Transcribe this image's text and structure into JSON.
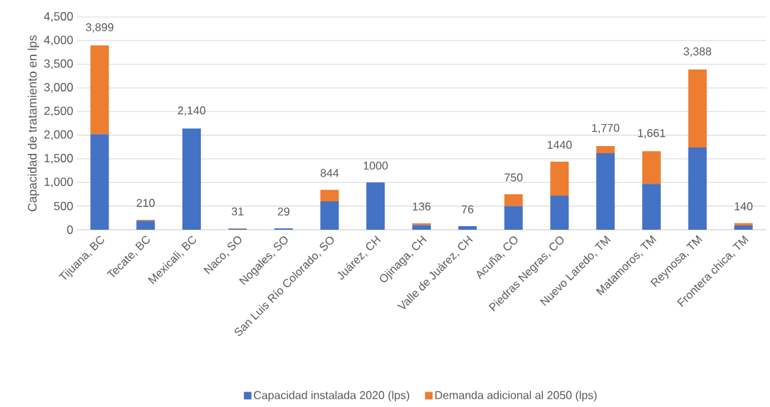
{
  "chart_data": {
    "type": "bar",
    "stacked": true,
    "ylabel": "Capacidad de tratamiento en lps",
    "categories": [
      "Tijuana, BC",
      "Tecate, BC",
      "Mexicali, BC",
      "Naco, SO",
      "Nogales, SO",
      "San Luis Río Colorado, SO",
      "Juárez, CH",
      "Ojinaga, CH",
      "Valle de Juárez, CH",
      "Acuña, CO",
      "Piedras Negras, CO",
      "Nuevo Laredo, TM",
      "Matamoros, TM",
      "Reynosa, TM",
      "Frontera chica, TM"
    ],
    "series": [
      {
        "name": "Capacidad instalada 2020 (lps)",
        "color": "#4472c4",
        "values": [
          2020,
          190,
          2140,
          20,
          29,
          600,
          1000,
          100,
          76,
          500,
          720,
          1620,
          970,
          1740,
          90
        ]
      },
      {
        "name": "Demanda adicional al 2050 (lps)",
        "color": "#ed7d31",
        "values": [
          1879,
          20,
          0,
          11,
          0,
          244,
          0,
          36,
          0,
          250,
          720,
          150,
          691,
          1648,
          50
        ]
      }
    ],
    "totals": [
      "3,899",
      "210",
      "2,140",
      "31",
      "29",
      "844",
      "1000",
      "136",
      "76",
      "750",
      "1440",
      "1,770",
      "1,661",
      "3,388",
      "140"
    ],
    "ylim": [
      0,
      4500
    ],
    "yticks": [
      {
        "value": 0,
        "label": "0"
      },
      {
        "value": 500,
        "label": "500"
      },
      {
        "value": 1000,
        "label": "1,000"
      },
      {
        "value": 1500,
        "label": "1,500"
      },
      {
        "value": 2000,
        "label": "2,000"
      },
      {
        "value": 2500,
        "label": "2,500"
      },
      {
        "value": 3000,
        "label": "3,000"
      },
      {
        "value": 3500,
        "label": "3,500"
      },
      {
        "value": 4000,
        "label": "4,000"
      },
      {
        "value": 4500,
        "label": "4,500"
      }
    ],
    "grid": "y",
    "legend": "bottom"
  }
}
